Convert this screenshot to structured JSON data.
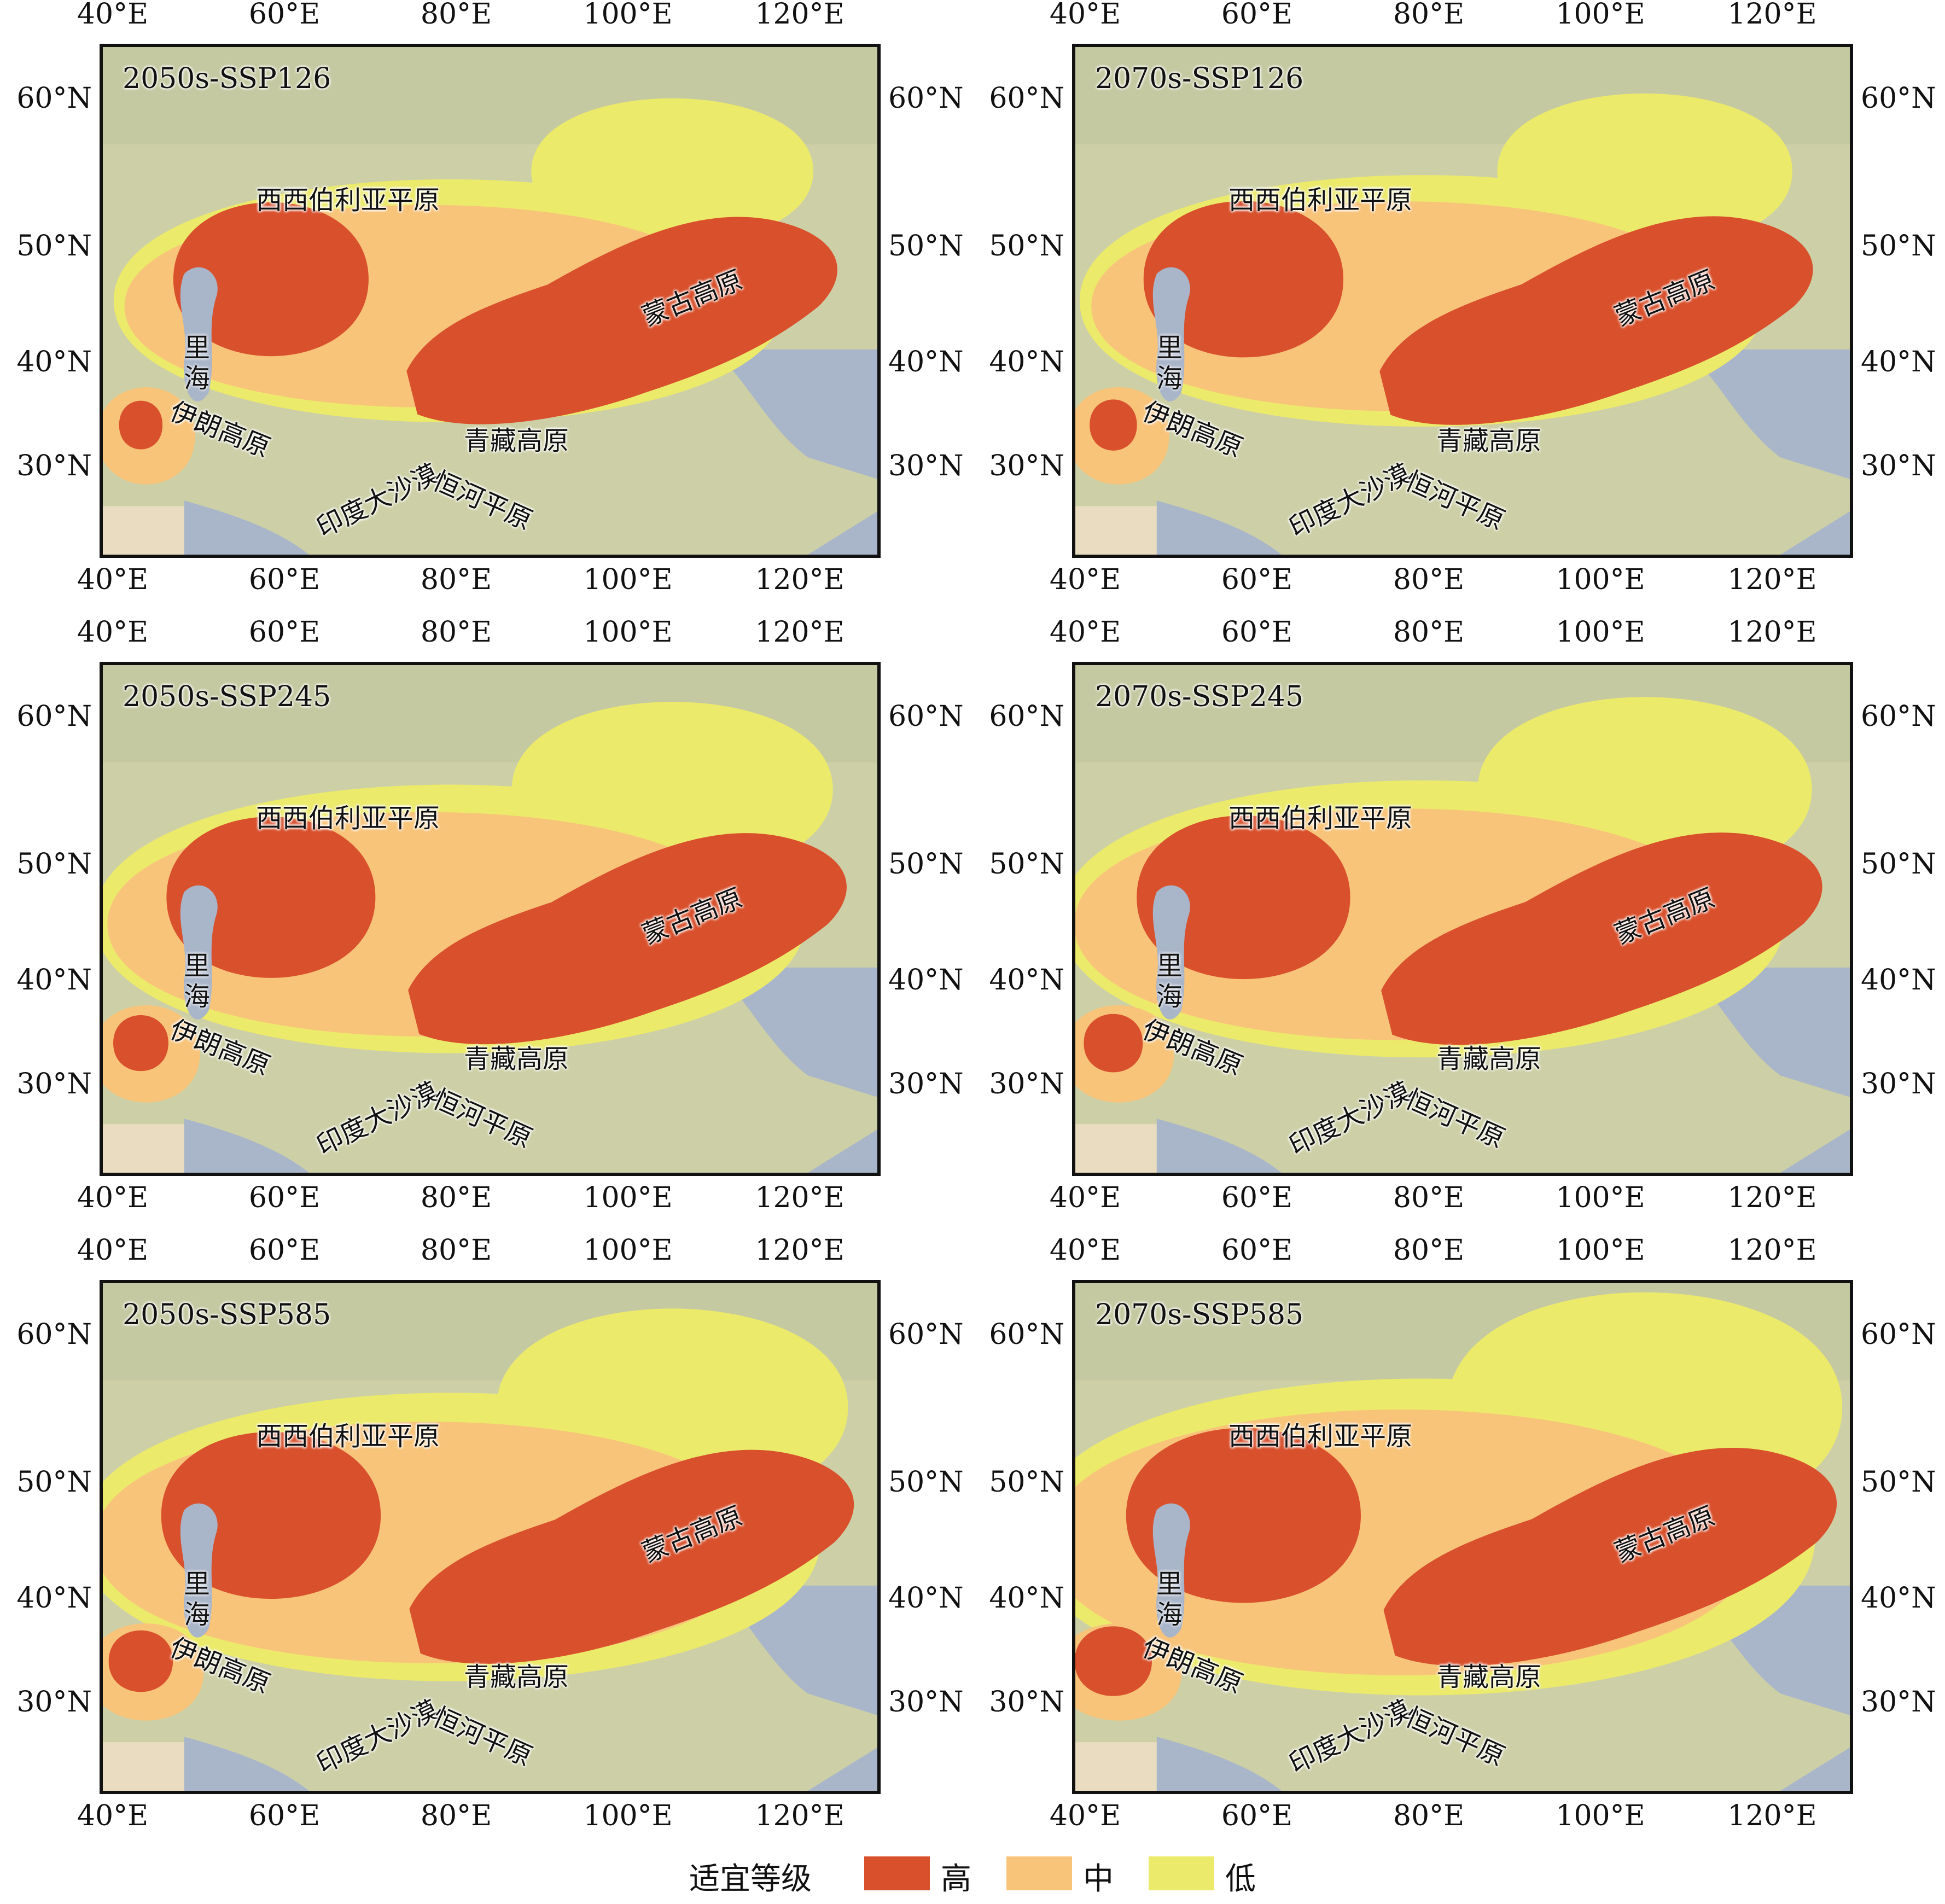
{
  "axes": {
    "lon_labels": [
      "40°E",
      "60°E",
      "80°E",
      "100°E",
      "120°E"
    ],
    "lat_labels": [
      "60°N",
      "50°N",
      "40°N",
      "30°N"
    ]
  },
  "regions": {
    "siberia": "西西伯利亚平原",
    "mongolia": "蒙古高原",
    "caspian_1": "里",
    "caspian_2": "海",
    "iran": "伊朗高原",
    "tibet": "青藏高原",
    "thar": "印度大沙漠",
    "ganges": "恒河平原"
  },
  "panels": [
    {
      "title": "2050s-SSP126",
      "period": "2050s",
      "scenario": "SSP126"
    },
    {
      "title": "2070s-SSP126",
      "period": "2070s",
      "scenario": "SSP126"
    },
    {
      "title": "2050s-SSP245",
      "period": "2050s",
      "scenario": "SSP245"
    },
    {
      "title": "2070s-SSP245",
      "period": "2070s",
      "scenario": "SSP245"
    },
    {
      "title": "2050s-SSP585",
      "period": "2050s",
      "scenario": "SSP585"
    },
    {
      "title": "2070s-SSP585",
      "period": "2070s",
      "scenario": "SSP585"
    }
  ],
  "legend": {
    "title": "适宜等级",
    "items": [
      {
        "label": "高",
        "color": "#d9502c"
      },
      {
        "label": "中",
        "color": "#f8c47a"
      },
      {
        "label": "低",
        "color": "#ecea6a"
      }
    ]
  },
  "colors": {
    "high": "#d9502c",
    "medium": "#f8c47a",
    "low": "#ecea6a",
    "terrain": "#cdd0a6",
    "sea": "#a9b5c9",
    "desert": "#e9dcc0"
  }
}
